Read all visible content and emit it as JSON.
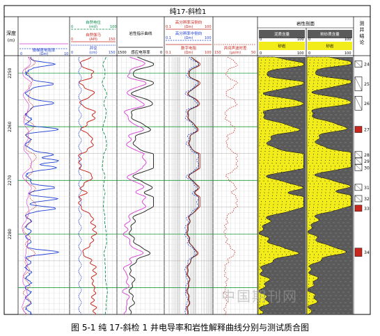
{
  "figure": {
    "title": "纯17-斜检1",
    "caption": "图 5-1  纯 17-斜检 1 井电导率和岩性解释曲线分别与测试质合图",
    "watermark": "中国期刊网"
  },
  "tracks": {
    "depth": {
      "header": "深度",
      "sub": "(m)"
    },
    "resistivity": {
      "top": "",
      "bottom": "微梯度电阻率",
      "bottom_unit": "(Ωm)",
      "bottom_left": "0",
      "bottom_right": "10"
    },
    "sp": {
      "header1": "自然电位",
      "header1_unit": "(mV)",
      "header1_left": "0",
      "header1_right": "100",
      "header2": "自然伽马",
      "header2_unit": "(API)",
      "header2_left": "0",
      "header2_right": "150",
      "header3": "井径",
      "header3_unit": "(cm)",
      "header3_left": "0",
      "header3_right": "150"
    },
    "lith": {
      "header": "岩性指示曲线",
      "bottom": "感应电导率",
      "bottom_left": "1500",
      "bottom_right": "0"
    },
    "hires": {
      "header1": "高分辨率深侧向",
      "header1_unit": "(Ωm)",
      "header1_left": "0.1",
      "header1_right": "100",
      "header2": "高分辨率中侧向",
      "header2_unit": "(Ωm)",
      "header2_left": "0.1",
      "header2_right": "100",
      "header3": "数字电阻",
      "header3_unit": "(Ωm)",
      "header3_left": "0.1",
      "header3_right": "100"
    },
    "sonic": {
      "header": "井间声波时差",
      "header_unit": "(μs/m)",
      "header_left": "150",
      "header_right": "50"
    },
    "profile": {
      "header": "岩性剖面",
      "col1": "泥质含量",
      "col1_left": "0",
      "col1_right": "100",
      "col1b": "砂岩",
      "col1b_left": "0",
      "col1b_right": "100",
      "col2": "粉砂质含量",
      "col2_left": "0",
      "col2_right": "100",
      "col2b": "砂岩",
      "col2b_left": "0",
      "col2b_right": "100"
    },
    "interp": {
      "header": "测井结论"
    }
  },
  "depth_ticks": [
    "2250",
    "2260",
    "2270",
    "2280"
  ],
  "chart_data": {
    "type": "line",
    "title": "纯17-斜检1",
    "y_axis": {
      "label": "深度",
      "unit": "m",
      "range": [
        2247,
        2295
      ],
      "ticks": [
        2250,
        2260,
        2270,
        2280
      ]
    },
    "layers": [
      {
        "number": "24",
        "depth": 2248.3,
        "type": "interval"
      },
      {
        "number": "25",
        "depth": 2252.0,
        "type": "interval"
      },
      {
        "number": "26",
        "depth": 2255.6,
        "type": "interval"
      },
      {
        "number": "27",
        "depth": 2260.5,
        "type": "red"
      },
      {
        "number": "28",
        "depth": 2265.2,
        "type": "interval"
      },
      {
        "number": "29",
        "depth": 2266.4,
        "type": "interval"
      },
      {
        "number": "30",
        "depth": 2267.6,
        "type": "interval"
      },
      {
        "number": "31",
        "depth": 2271.3,
        "type": "interval"
      },
      {
        "number": "32",
        "depth": 2273.4,
        "type": "interval"
      },
      {
        "number": "33",
        "depth": 2275.2,
        "type": "red"
      },
      {
        "number": "34",
        "depth": 2283.4,
        "type": "red"
      }
    ],
    "colors": {
      "blue": "#1f3fd6",
      "red": "#c8281e",
      "green": "#0a8a4a",
      "magenta": "#d83ad8",
      "dark": "#2b2b2b",
      "yellow": "#f2ec1b",
      "shale": "#5a5a5a",
      "grid_green": "#1a9a3a"
    }
  }
}
